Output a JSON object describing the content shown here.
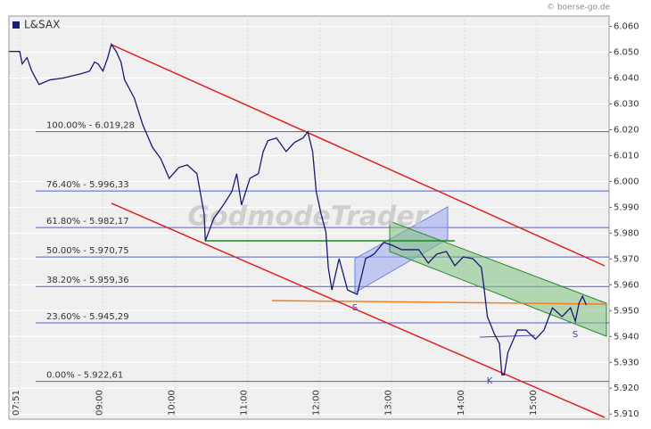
{
  "chart_data": {
    "type": "line",
    "title": "L&SAX",
    "source": "© boerse-go.de",
    "watermark": "GodmodeTrader",
    "xlim": [
      462,
      960
    ],
    "xticks": [
      {
        "value": 471,
        "label": "07:51"
      },
      {
        "value": 540,
        "label": "09:00"
      },
      {
        "value": 600,
        "label": "10:00"
      },
      {
        "value": 660,
        "label": "11:00"
      },
      {
        "value": 720,
        "label": "12:00"
      },
      {
        "value": 780,
        "label": "13:00"
      },
      {
        "value": 840,
        "label": "14:00"
      },
      {
        "value": 900,
        "label": "15:00"
      }
    ],
    "ylim": [
      5908,
      6064
    ],
    "yticks": [
      {
        "value": 5910,
        "label": "5.910"
      },
      {
        "value": 5920,
        "label": "5.920"
      },
      {
        "value": 5930,
        "label": "5.930"
      },
      {
        "value": 5940,
        "label": "5.940"
      },
      {
        "value": 5950,
        "label": "5.950"
      },
      {
        "value": 5960,
        "label": "5.960"
      },
      {
        "value": 5970,
        "label": "5.970"
      },
      {
        "value": 5980,
        "label": "5.980"
      },
      {
        "value": 5990,
        "label": "5.990"
      },
      {
        "value": 6000,
        "label": "6.000"
      },
      {
        "value": 6010,
        "label": "6.010"
      },
      {
        "value": 6020,
        "label": "6.020"
      },
      {
        "value": 6030,
        "label": "6.030"
      },
      {
        "value": 6040,
        "label": "6.040"
      },
      {
        "value": 6050,
        "label": "6.050"
      },
      {
        "value": 6060,
        "label": "6.060"
      }
    ],
    "fib_levels": [
      {
        "value": 6019.28,
        "label": "100.00% - 6.019,28"
      },
      {
        "value": 5996.33,
        "label": "76.40% - 5.996,33"
      },
      {
        "value": 5982.17,
        "label": "61.80% - 5.982,17"
      },
      {
        "value": 5970.75,
        "label": "50.00% - 5.970,75"
      },
      {
        "value": 5959.36,
        "label": "38.20% - 5.959,36"
      },
      {
        "value": 5945.29,
        "label": "23.60% - 5.945,29"
      },
      {
        "value": 5922.61,
        "label": "0.00% - 5.922,61"
      }
    ],
    "annotations": [
      "S",
      "K",
      "S"
    ],
    "series": [
      {
        "name": "L&SAX",
        "color": "#1a1a6e",
        "x": [
          462,
          471,
          473,
          477,
          481,
          487,
          496,
          507,
          522,
          529,
          533,
          536,
          540,
          544,
          547,
          551,
          555,
          558,
          566,
          573,
          581,
          588,
          595,
          603,
          610,
          618,
          624,
          625,
          632,
          640,
          647,
          651,
          655,
          662,
          669,
          673,
          677,
          684,
          692,
          699,
          706,
          710,
          714,
          717,
          721,
          725,
          727,
          730,
          736,
          743,
          751,
          758,
          765,
          773,
          780,
          788,
          795,
          802,
          810,
          817,
          825,
          832,
          839,
          847,
          854,
          856,
          859,
          865,
          869,
          871,
          873,
          876,
          884,
          891,
          899,
          906,
          913,
          921,
          928,
          932,
          935,
          938,
          941
        ],
        "values": [
          6050.3,
          6050.3,
          6045.5,
          6047.9,
          6042.7,
          6037.5,
          6039.3,
          6040.0,
          6041.7,
          6042.7,
          6046.2,
          6045.5,
          6042.7,
          6047.9,
          6053.1,
          6050.3,
          6046.2,
          6039.3,
          6032.3,
          6022.0,
          6013.3,
          6008.8,
          6001.2,
          6005.4,
          6006.4,
          6003.0,
          5987.4,
          5977.0,
          5985.7,
          5990.9,
          5996.1,
          6003.0,
          5990.9,
          6001.2,
          6003.0,
          6011.6,
          6015.8,
          6016.8,
          6011.6,
          6015.1,
          6016.8,
          6019.2,
          6011.6,
          5996.1,
          5987.4,
          5980.5,
          5966.7,
          5958.0,
          5970.1,
          5958.0,
          5956.3,
          5970.1,
          5971.9,
          5976.4,
          5975.3,
          5973.6,
          5973.6,
          5973.6,
          5968.4,
          5971.9,
          5972.9,
          5967.4,
          5970.8,
          5970.1,
          5966.7,
          5959.8,
          5947.7,
          5940.8,
          5937.3,
          5925.2,
          5925.2,
          5933.8,
          5942.5,
          5942.5,
          5939.0,
          5942.5,
          5951.1,
          5947.7,
          5951.1,
          5945.9,
          5952.8,
          5955.6,
          5952.2
        ]
      }
    ]
  }
}
